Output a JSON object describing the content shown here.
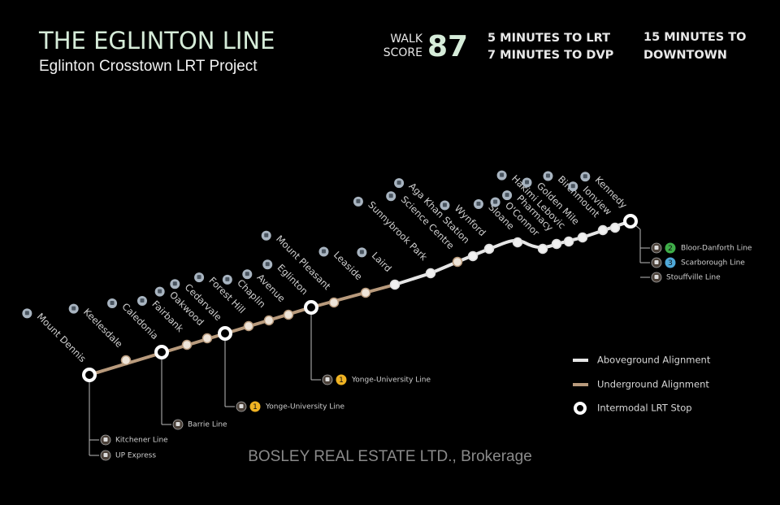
{
  "header": {
    "title": "THE EGLINTON LINE",
    "subtitle": "Eglinton Crosstown LRT Project"
  },
  "walk_score": {
    "label": [
      "WALK",
      "SCORE"
    ],
    "value": 87
  },
  "travel_times": [
    [
      "5 MINUTES TO LRT",
      "7 MINUTES TO DVP"
    ],
    [
      "15 MINUTES TO",
      "DOWNTOWN"
    ]
  ],
  "stations": [
    "Mount Dennis",
    "Keelesdale",
    "Caledonia",
    "Fairbank",
    "Oakwood",
    "Cedarvale",
    "Forest Hill",
    "Chaplin",
    "Avenue",
    "Eglinton",
    "Mount Pleasant",
    "Leaside",
    "Laird",
    "Sunnybrook Park",
    "Science Centre",
    "Aga Khan Station",
    "Wynford",
    "Sloane",
    "O'Connor",
    "Pharmacy",
    "Hakimi Lebovic",
    "Golden Mile",
    "Birchmount",
    "Ionview",
    "Kennedy"
  ],
  "connections": [
    [
      {
        "name": "Kitchener Line"
      },
      {
        "name": "UP Express"
      }
    ],
    [
      {
        "name": "Barrie Line"
      }
    ],
    [
      {
        "name": "Yonge-University Line",
        "number": 1
      }
    ],
    [
      {
        "name": "Yonge-University Line",
        "number": 1
      }
    ],
    [
      {
        "name": "Bloor-Danforth Line",
        "number": 2
      },
      {
        "name": "Scarborough Line",
        "number": 3
      },
      {
        "name": "Stouffville Line"
      }
    ]
  ],
  "legend": [
    "Aboveground Alignment",
    "Underground Alignment",
    "Intermodal LRT Stop"
  ],
  "watermark": "BOSLEY REAL ESTATE LTD., Brokerage"
}
